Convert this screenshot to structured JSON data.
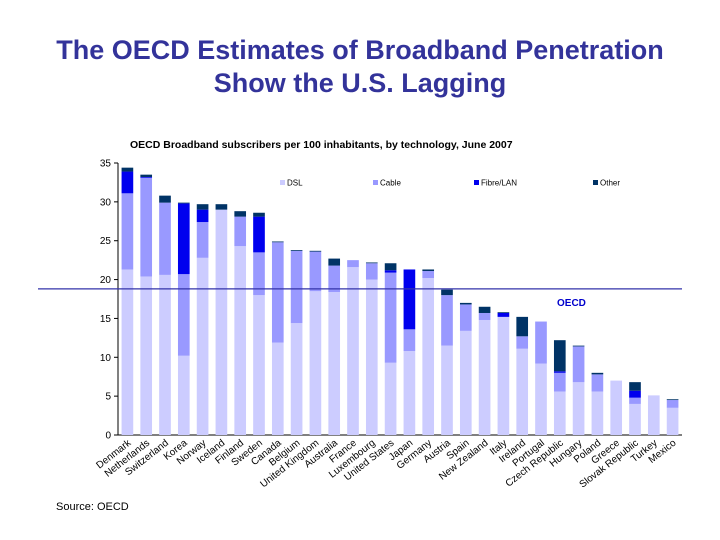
{
  "slide": {
    "title_line1": "The OECD Estimates of Broadband Penetration",
    "title_line2": "Show the U.S. Lagging",
    "source": "Source: OECD"
  },
  "colors": {
    "DSL": "#ccccff",
    "Cable": "#9999ff",
    "Fibre/LAN": "#0000ee",
    "Other": "#003366",
    "reference_line": "#3333aa",
    "title": "#33339a"
  },
  "chart_data": {
    "type": "bar",
    "stacked": true,
    "title": "OECD Broadband subscribers per 100 inhabitants, by technology, June 2007",
    "xlabel": "",
    "ylabel": "",
    "ylim": [
      0,
      35
    ],
    "yticks": [
      0,
      5,
      10,
      15,
      20,
      25,
      30,
      35
    ],
    "grid": false,
    "legend_position": "top",
    "categories": [
      "Denmark",
      "Netherlands",
      "Switzerland",
      "Korea",
      "Norway",
      "Iceland",
      "Finland",
      "Sweden",
      "Canada",
      "Belgium",
      "United Kingdom",
      "Australia",
      "France",
      "Luxembourg",
      "United States",
      "Japan",
      "Germany",
      "Austria",
      "Spain",
      "New Zealand",
      "Italy",
      "Ireland",
      "Portugal",
      "Czech Republic",
      "Hungary",
      "Poland",
      "Greece",
      "Slovak Republic",
      "Turkey",
      "Mexico"
    ],
    "series": [
      {
        "name": "DSL",
        "values": [
          21.3,
          20.4,
          20.6,
          10.2,
          22.8,
          29.0,
          24.3,
          18.0,
          11.9,
          14.4,
          18.5,
          18.4,
          21.6,
          20.0,
          9.3,
          10.8,
          20.2,
          11.5,
          13.4,
          14.8,
          15.2,
          11.1,
          9.2,
          5.6,
          6.8,
          5.6,
          7.0,
          4.0,
          5.1,
          3.5
        ]
      },
      {
        "name": "Cable",
        "values": [
          9.8,
          12.7,
          9.3,
          10.5,
          4.6,
          0.0,
          3.8,
          5.5,
          12.9,
          9.3,
          5.1,
          3.4,
          0.9,
          2.1,
          11.6,
          2.8,
          0.9,
          6.5,
          3.4,
          0.9,
          0.0,
          1.6,
          5.4,
          2.4,
          4.6,
          2.2,
          0.0,
          0.8,
          0.0,
          1.0
        ]
      },
      {
        "name": "Fibre/LAN",
        "values": [
          2.8,
          0.1,
          0.0,
          9.1,
          1.6,
          0.0,
          0.0,
          4.6,
          0.0,
          0.0,
          0.0,
          0.0,
          0.0,
          0.0,
          0.3,
          7.7,
          0.0,
          0.0,
          0.0,
          0.0,
          0.5,
          0.0,
          0.0,
          0.2,
          0.0,
          0.0,
          0.0,
          0.9,
          0.0,
          0.0
        ]
      },
      {
        "name": "Other",
        "values": [
          0.5,
          0.3,
          0.9,
          0.1,
          0.7,
          0.7,
          0.7,
          0.5,
          0.1,
          0.1,
          0.1,
          0.9,
          0.0,
          0.1,
          0.9,
          0.0,
          0.2,
          0.7,
          0.2,
          0.8,
          0.1,
          2.5,
          0.0,
          4.0,
          0.1,
          0.2,
          0.0,
          1.1,
          0.0,
          0.1
        ]
      }
    ],
    "annotations": [
      {
        "text": "OECD",
        "y": 18.8
      }
    ]
  }
}
